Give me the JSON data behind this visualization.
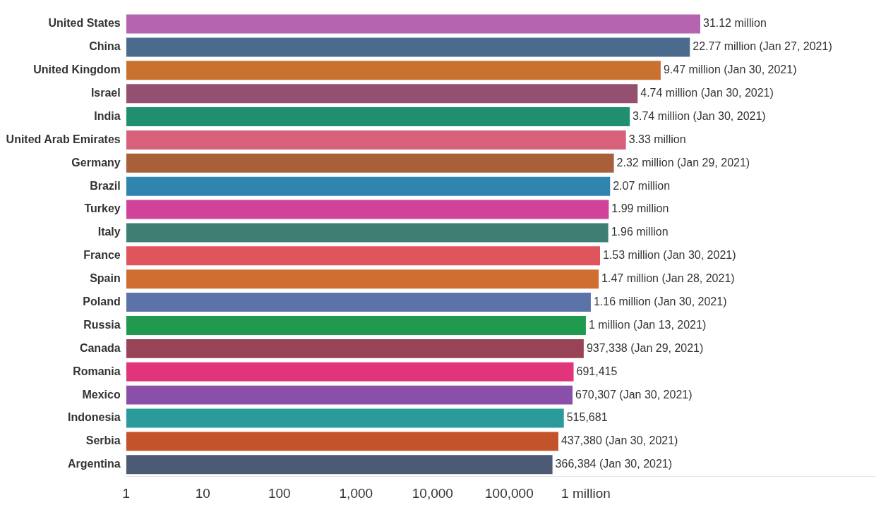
{
  "chart_data": {
    "type": "bar",
    "orientation": "horizontal",
    "log": "x",
    "categories": [
      "United States",
      "China",
      "United Kingdom",
      "Israel",
      "India",
      "United Arab Emirates",
      "Germany",
      "Brazil",
      "Turkey",
      "Italy",
      "France",
      "Spain",
      "Poland",
      "Russia",
      "Canada",
      "Romania",
      "Mexico",
      "Indonesia",
      "Serbia",
      "Argentina"
    ],
    "values": [
      31120000,
      22770000,
      9470000,
      4740000,
      3740000,
      3330000,
      2320000,
      2070000,
      1990000,
      1960000,
      1530000,
      1470000,
      1160000,
      1000000,
      937338,
      691415,
      670307,
      515681,
      437380,
      366384
    ],
    "value_labels": [
      "31.12 million",
      "22.77 million (Jan 27, 2021)",
      "9.47 million (Jan 30, 2021)",
      "4.74 million (Jan 30, 2021)",
      "3.74 million (Jan 30, 2021)",
      "3.33 million",
      "2.32 million (Jan 29, 2021)",
      "2.07 million",
      "1.99 million",
      "1.96 million",
      "1.53 million (Jan 30, 2021)",
      "1.47 million (Jan 28, 2021)",
      "1.16 million (Jan 30, 2021)",
      "1 million (Jan 13, 2021)",
      "937,338 (Jan 29, 2021)",
      "691,415",
      "670,307 (Jan 30, 2021)",
      "515,681",
      "437,380 (Jan 30, 2021)",
      "366,384 (Jan 30, 2021)"
    ],
    "colors": [
      "#b565b0",
      "#4a6a8e",
      "#c9712e",
      "#955071",
      "#1f8f6f",
      "#d7607a",
      "#a85f3a",
      "#2f84b0",
      "#d1439a",
      "#3f7f73",
      "#e0545e",
      "#cf6e2f",
      "#5b73a8",
      "#1f9a4f",
      "#984456",
      "#e0357a",
      "#8a4fa8",
      "#2a9a9a",
      "#c2532a",
      "#4c5a74"
    ],
    "xlim": [
      1,
      6000000000
    ],
    "xticks": [
      1,
      10,
      100,
      {
        "value": 1000,
        "label": "1,000"
      },
      {
        "value": 10000,
        "label": "10,000"
      },
      {
        "value": 100000,
        "label": "100,000"
      },
      {
        "value": 1000000,
        "label": "1 million"
      }
    ],
    "grid": false
  }
}
